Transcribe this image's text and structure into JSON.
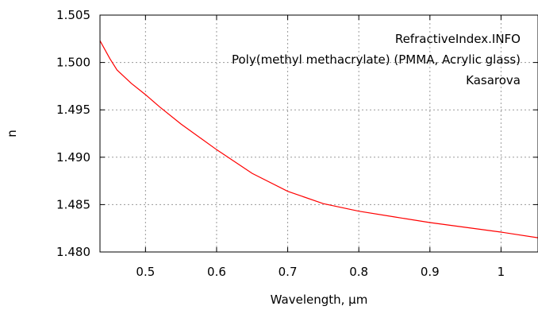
{
  "chart_data": {
    "type": "line",
    "title": "",
    "annotations": [
      "RefractiveIndex.INFO",
      "Poly(methyl methacrylate) (PMMA, Acrylic glass)",
      "Kasarova"
    ],
    "xlabel": "Wavelength, µm",
    "ylabel": "n",
    "xlim": [
      0.436,
      1.052
    ],
    "ylim": [
      1.48,
      1.505
    ],
    "xticks": [
      0.5,
      0.6,
      0.7,
      0.8,
      0.9,
      1.0
    ],
    "xtick_labels": [
      "0.5",
      "0.6",
      "0.7",
      "0.8",
      "0.9",
      "1"
    ],
    "yticks": [
      1.48,
      1.485,
      1.49,
      1.495,
      1.5,
      1.505
    ],
    "ytick_labels": [
      "1.480",
      "1.485",
      "1.490",
      "1.495",
      "1.500",
      "1.505"
    ],
    "grid": true,
    "series": [
      {
        "color": "#ff0000",
        "x": [
          0.436,
          0.45,
          0.46,
          0.48,
          0.5,
          0.52,
          0.55,
          0.6,
          0.65,
          0.7,
          0.75,
          0.8,
          0.85,
          0.9,
          0.95,
          1.0,
          1.052
        ],
        "y": [
          1.5023,
          1.5004,
          1.4992,
          1.4978,
          1.4966,
          1.4953,
          1.4935,
          1.4908,
          1.4883,
          1.4864,
          1.4851,
          1.4843,
          1.4837,
          1.4831,
          1.4826,
          1.4821,
          1.4815
        ]
      }
    ]
  }
}
